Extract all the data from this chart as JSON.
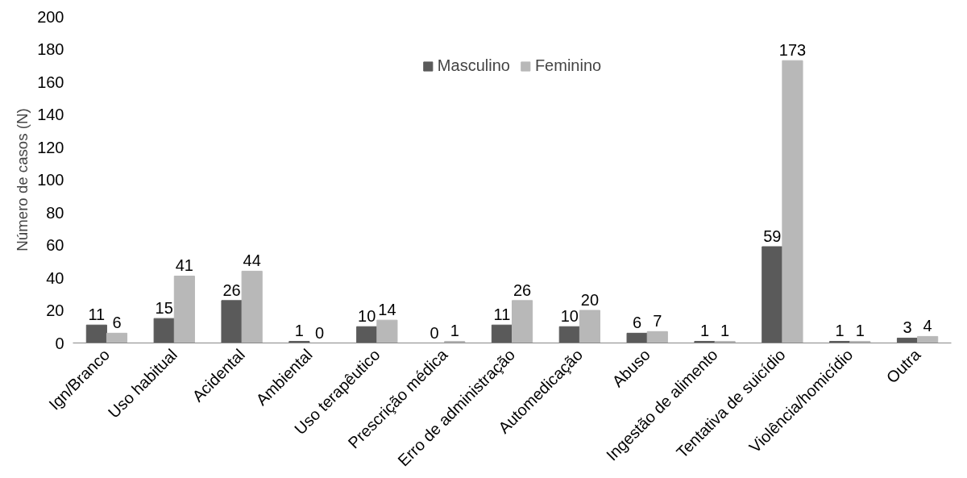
{
  "chart_data": {
    "type": "bar",
    "ylabel": "Número de casos (N)",
    "categories": [
      "Ign/Branco",
      "Uso habitual",
      "Acidental",
      "Ambiental",
      "Uso terapêutico",
      "Prescrição médica",
      "Erro de administração",
      "Automedicação",
      "Abuso",
      "Ingestão de alimento",
      "Tentativa de suicídio",
      "Violência/homicídio",
      "Outra"
    ],
    "series": [
      {
        "name": "Masculino",
        "color": "#5a5a5a",
        "values": [
          11,
          15,
          26,
          1,
          10,
          0,
          11,
          10,
          6,
          1,
          59,
          1,
          3
        ]
      },
      {
        "name": "Feminino",
        "color": "#b8b8b8",
        "values": [
          6,
          41,
          44,
          0,
          14,
          1,
          26,
          20,
          7,
          1,
          173,
          1,
          4
        ]
      }
    ],
    "ylim": [
      0,
      200
    ],
    "yticks": [
      0,
      20,
      40,
      60,
      80,
      100,
      120,
      140,
      160,
      180,
      200
    ],
    "grid": false,
    "legend": "top",
    "data_labels": true
  }
}
